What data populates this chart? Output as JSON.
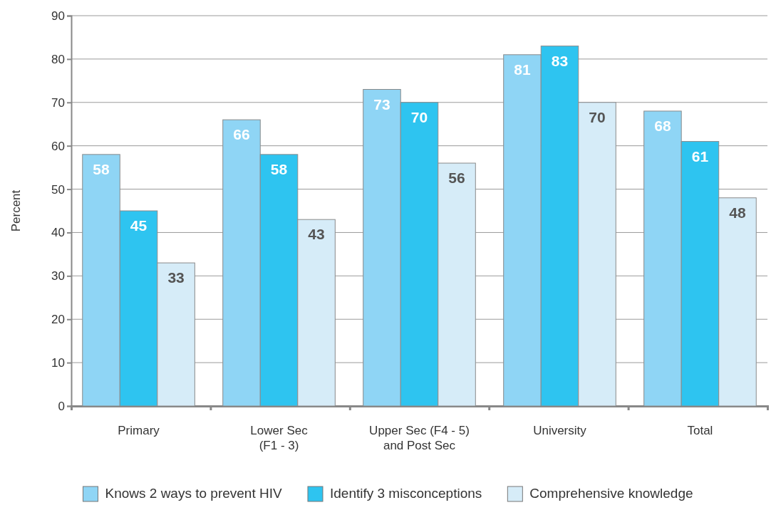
{
  "chart_data": {
    "type": "bar",
    "ylabel": "Percent",
    "categories": [
      "Primary",
      "Lower Sec\n(F1 - 3)",
      "Upper Sec (F4 - 5)\nand Post Sec",
      "University",
      "Total"
    ],
    "series": [
      {
        "name": "Knows 2 ways to prevent HIV",
        "color": "#8fd5f5",
        "values": [
          58,
          66,
          73,
          81,
          68
        ]
      },
      {
        "name": "Identify 3 misconceptions",
        "color": "#2ec4f0",
        "values": [
          45,
          58,
          70,
          83,
          61
        ]
      },
      {
        "name": "Comprehensive knowledge",
        "color": "#d6ecf8",
        "values": [
          33,
          43,
          56,
          70,
          48
        ]
      }
    ],
    "ylim": [
      0,
      90
    ],
    "yticks": [
      0,
      10,
      20,
      30,
      40,
      50,
      60,
      70,
      80,
      90
    ],
    "grid": "y",
    "legend": "bottom",
    "data_labels": true
  }
}
